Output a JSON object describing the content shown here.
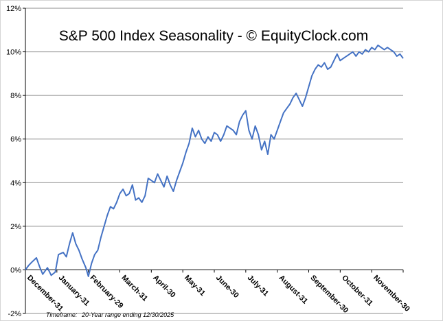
{
  "chart_data": {
    "type": "line",
    "title": "S&P 500 Index Seasonality - © EquityClock.com",
    "footer_label": "Timeframe:",
    "footer_text": "20-Year  range ending  12/30/2025",
    "ylim": [
      -2,
      12
    ],
    "yticks": [
      -2,
      0,
      2,
      4,
      6,
      8,
      10,
      12
    ],
    "ytick_labels": [
      "-2%",
      "0%",
      "2%",
      "4%",
      "6%",
      "8%",
      "10%",
      "12%"
    ],
    "x_domain": [
      0,
      12
    ],
    "xtick_labels": [
      "December-31",
      "January-31",
      "February-29",
      "March-31",
      "April-30",
      "May-31",
      "June-30",
      "July-31",
      "August-31",
      "September-30",
      "October-31",
      "November-30"
    ],
    "line_color": "#4472C4",
    "gridlines": true,
    "series": [
      {
        "name": "S&P 500 Index Seasonality",
        "x": [
          0,
          0.1,
          0.2,
          0.35,
          0.45,
          0.55,
          0.7,
          0.82,
          0.95,
          1.05,
          1.2,
          1.3,
          1.4,
          1.5,
          1.6,
          1.7,
          1.8,
          1.92,
          2.0,
          2.1,
          2.2,
          2.3,
          2.4,
          2.5,
          2.6,
          2.7,
          2.8,
          2.9,
          3.0,
          3.1,
          3.2,
          3.3,
          3.4,
          3.5,
          3.6,
          3.7,
          3.8,
          3.9,
          4.0,
          4.1,
          4.2,
          4.3,
          4.4,
          4.5,
          4.6,
          4.7,
          4.8,
          4.9,
          5.0,
          5.1,
          5.2,
          5.3,
          5.4,
          5.5,
          5.6,
          5.7,
          5.8,
          5.9,
          6.0,
          6.1,
          6.2,
          6.3,
          6.4,
          6.5,
          6.6,
          6.7,
          6.8,
          6.9,
          7.0,
          7.1,
          7.2,
          7.3,
          7.4,
          7.5,
          7.6,
          7.7,
          7.8,
          7.9,
          8.0,
          8.1,
          8.2,
          8.3,
          8.4,
          8.5,
          8.6,
          8.7,
          8.8,
          8.9,
          9.0,
          9.1,
          9.2,
          9.3,
          9.4,
          9.5,
          9.6,
          9.7,
          9.8,
          9.9,
          10.0,
          10.1,
          10.2,
          10.3,
          10.4,
          10.5,
          10.6,
          10.7,
          10.8,
          10.9,
          11.0,
          11.1,
          11.2,
          11.3,
          11.4,
          11.5,
          11.6,
          11.7,
          11.8,
          11.9,
          12.0
        ],
        "values": [
          0,
          0.2,
          0.35,
          0.55,
          0.15,
          -0.2,
          0.1,
          -0.25,
          -0.1,
          0.7,
          0.8,
          0.6,
          1.2,
          1.7,
          1.2,
          0.9,
          0.5,
          0.1,
          -0.3,
          0.3,
          0.7,
          0.9,
          1.5,
          2.0,
          2.5,
          2.9,
          2.8,
          3.1,
          3.5,
          3.7,
          3.4,
          3.5,
          3.9,
          3.2,
          3.3,
          3.1,
          3.4,
          4.2,
          4.1,
          4.0,
          4.4,
          4.1,
          3.8,
          4.3,
          3.9,
          3.6,
          4.1,
          4.5,
          4.9,
          5.4,
          5.8,
          6.5,
          6.1,
          6.4,
          6.0,
          5.8,
          6.1,
          5.9,
          6.3,
          6.2,
          5.9,
          6.2,
          6.6,
          6.5,
          6.4,
          6.2,
          6.8,
          7.1,
          7.3,
          6.4,
          6.0,
          6.6,
          6.2,
          5.5,
          5.9,
          5.3,
          6.2,
          6.0,
          6.4,
          6.8,
          7.2,
          7.4,
          7.6,
          7.9,
          8.1,
          7.8,
          7.5,
          7.9,
          8.4,
          8.9,
          9.2,
          9.4,
          9.3,
          9.5,
          9.2,
          9.3,
          9.6,
          9.9,
          9.6,
          9.7,
          9.8,
          9.9,
          10.0,
          9.8,
          10.0,
          9.9,
          10.1,
          10.0,
          10.2,
          10.1,
          10.3,
          10.2,
          10.1,
          10.2,
          10.1,
          10.0,
          9.8,
          9.9,
          9.7
        ]
      }
    ]
  }
}
